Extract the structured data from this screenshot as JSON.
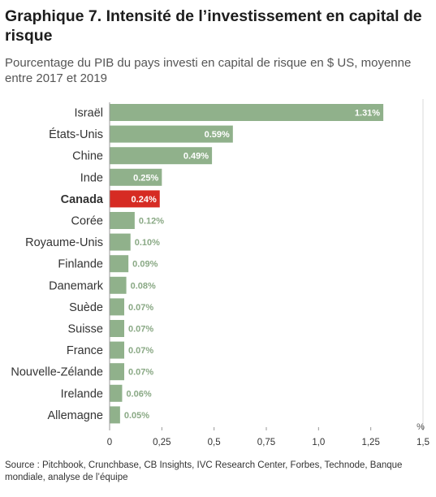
{
  "title": "Graphique 7. Intensité de l’investissement en capital de risque",
  "subtitle": "Pourcentage du PIB du pays investi en capital de risque en $ US, moyenne entre 2017 et 2019",
  "source": "Source : Pitchbook, Crunchbase, CB Insights, IVC Research Center, Forbes, Technode, Banque mondiale, analyse de l’équipe",
  "colors": {
    "bar": "#90b18b",
    "highlight": "#d62b23",
    "label_outside": "#8aa985"
  },
  "chart_data": {
    "type": "bar",
    "orientation": "horizontal",
    "categories": [
      "Israël",
      "États-Unis",
      "Chine",
      "Inde",
      "Canada",
      "Corée",
      "Royaume-Unis",
      "Finlande",
      "Danemark",
      "Suède",
      "Suisse",
      "France",
      "Nouvelle-Zélande",
      "Irelande",
      "Allemagne"
    ],
    "values": [
      1.31,
      0.59,
      0.49,
      0.25,
      0.24,
      0.12,
      0.1,
      0.09,
      0.08,
      0.07,
      0.07,
      0.07,
      0.07,
      0.06,
      0.05
    ],
    "value_labels": [
      "1.31%",
      "0.59%",
      "0.49%",
      "0.25%",
      "0.24%",
      "0.12%",
      "0.10%",
      "0.09%",
      "0.08%",
      "0.07%",
      "0.07%",
      "0.07%",
      "0.07%",
      "0.06%",
      "0.05%"
    ],
    "highlight": "Canada",
    "xticks": [
      "0",
      "0,25",
      "0,5",
      "0,75",
      "1,0",
      "1,25",
      "1,5"
    ],
    "xtick_values": [
      0,
      0.25,
      0.5,
      0.75,
      1.0,
      1.25,
      1.5
    ],
    "xlim": [
      0,
      1.5
    ],
    "xunit": "%",
    "grid": false
  }
}
